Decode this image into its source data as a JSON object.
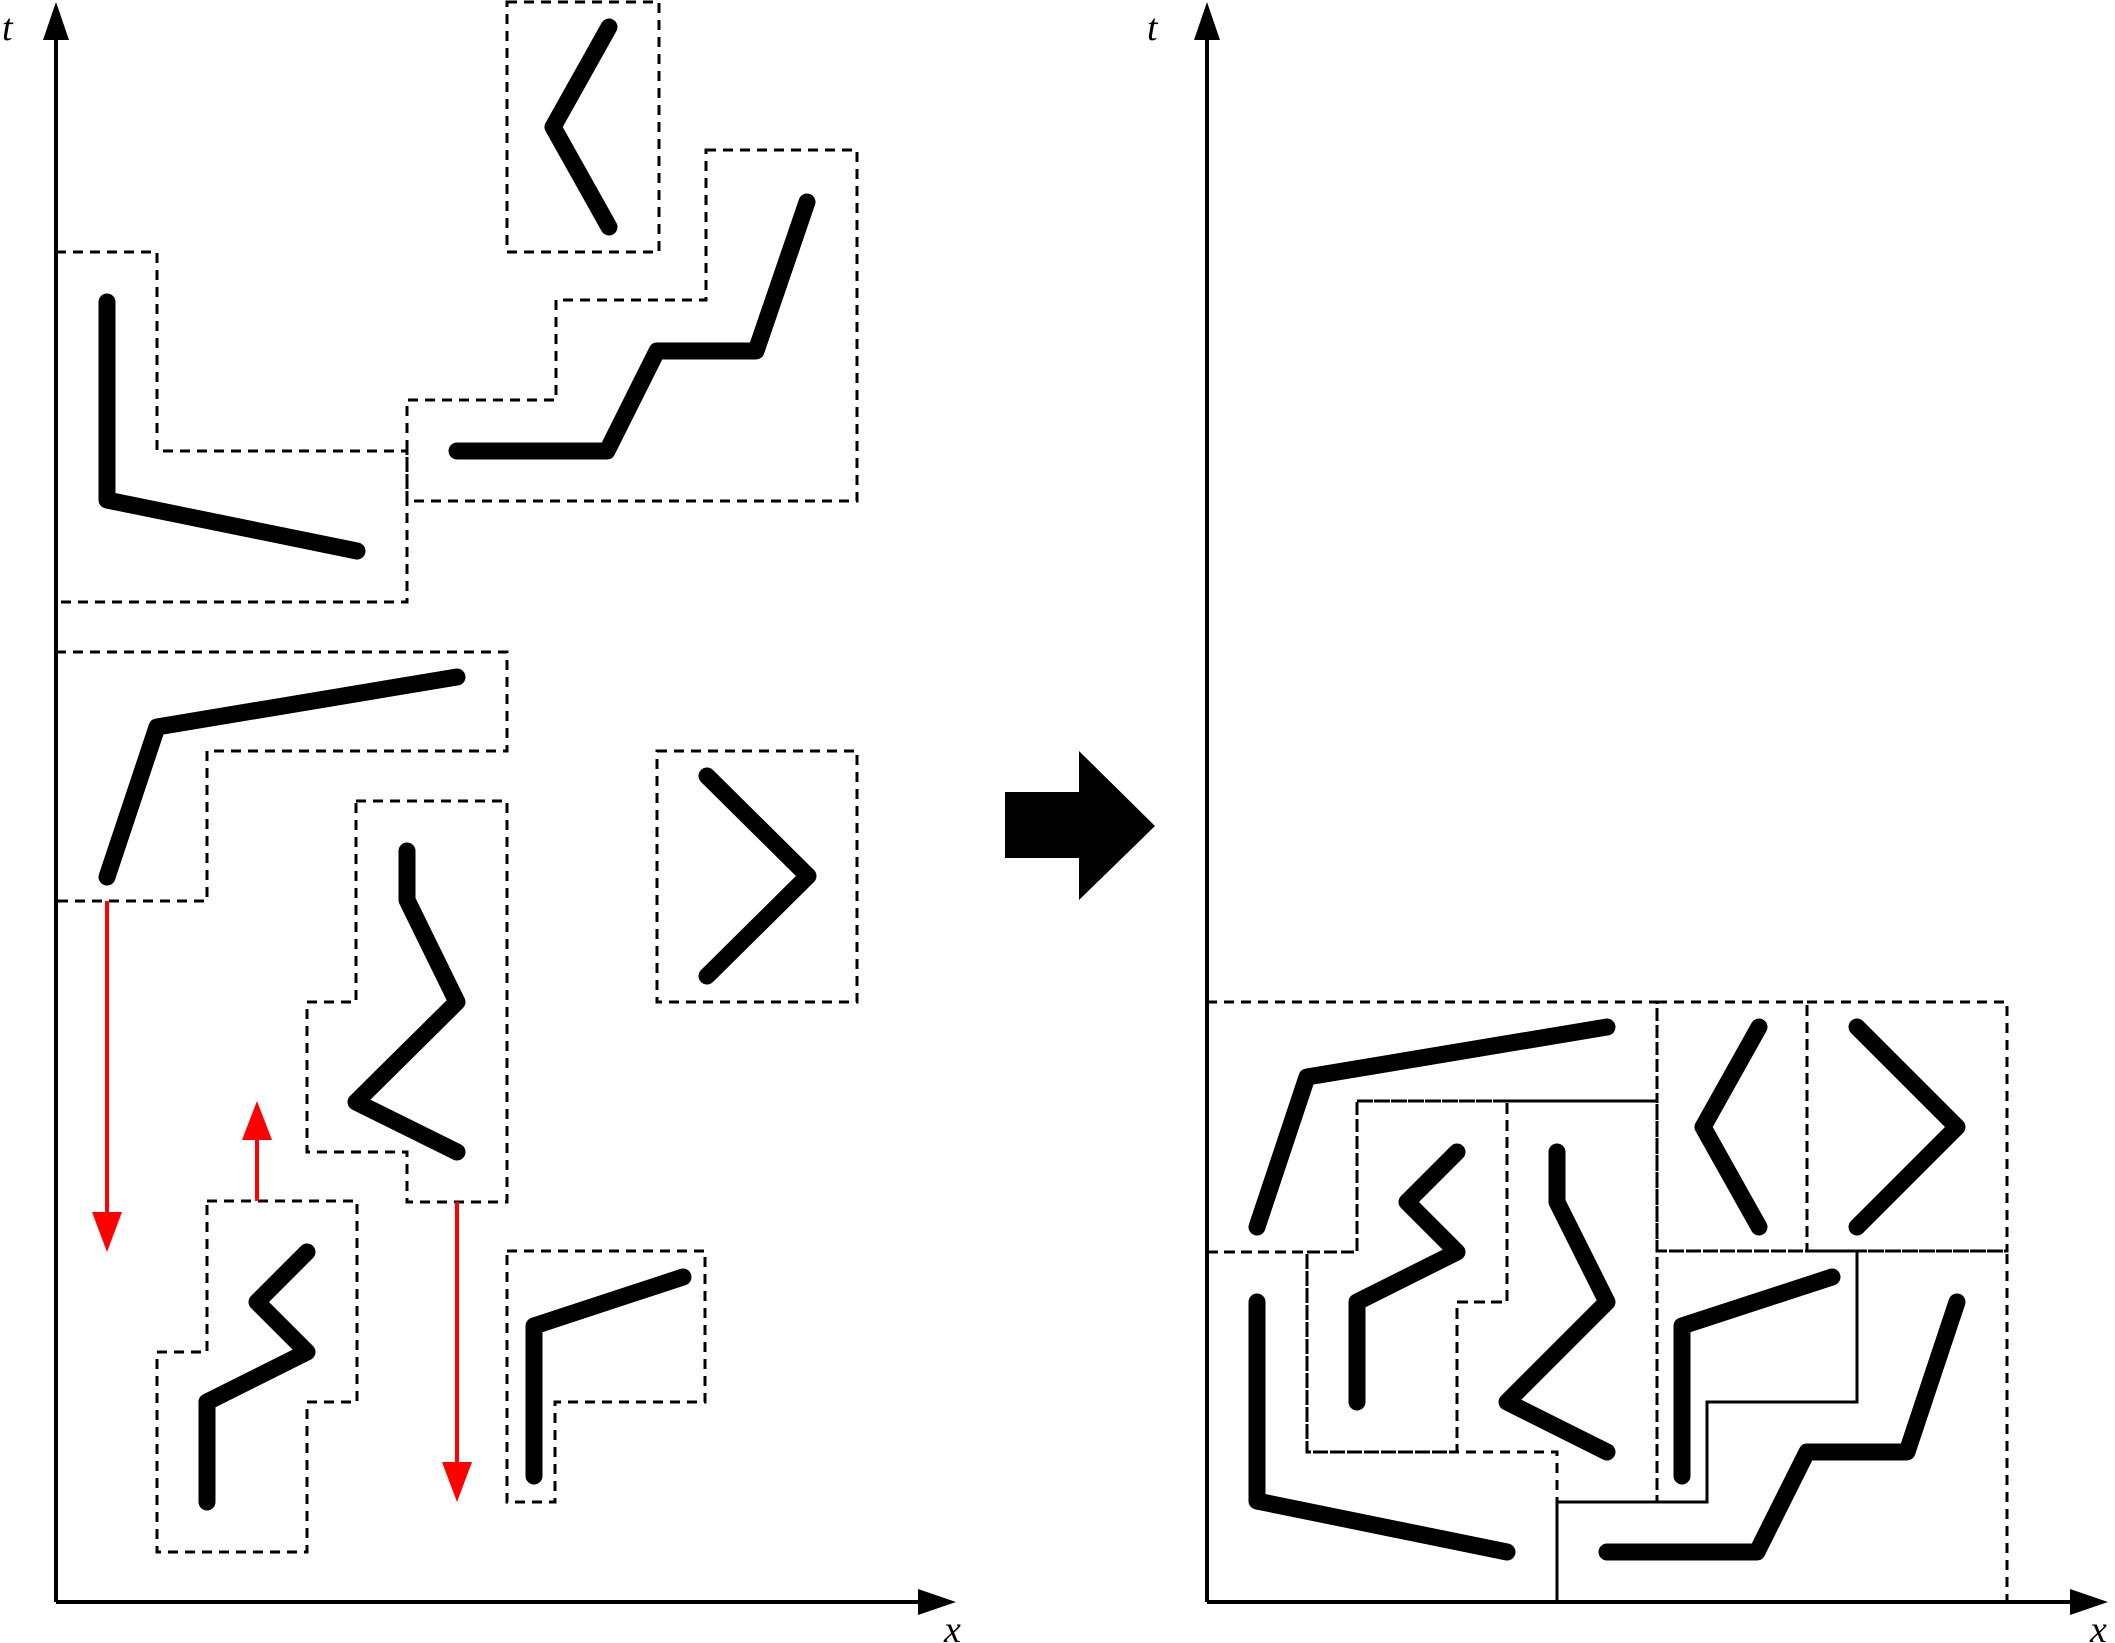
{
  "axes": {
    "time_label": "t",
    "space_label": "x"
  },
  "colors": {
    "ink": "#000000",
    "move_arrow": "#ff0000"
  },
  "icons": {
    "transform_arrow": "right-arrow-icon",
    "move_down": "down-arrow-icon",
    "move_up": "up-arrow-icon"
  }
}
